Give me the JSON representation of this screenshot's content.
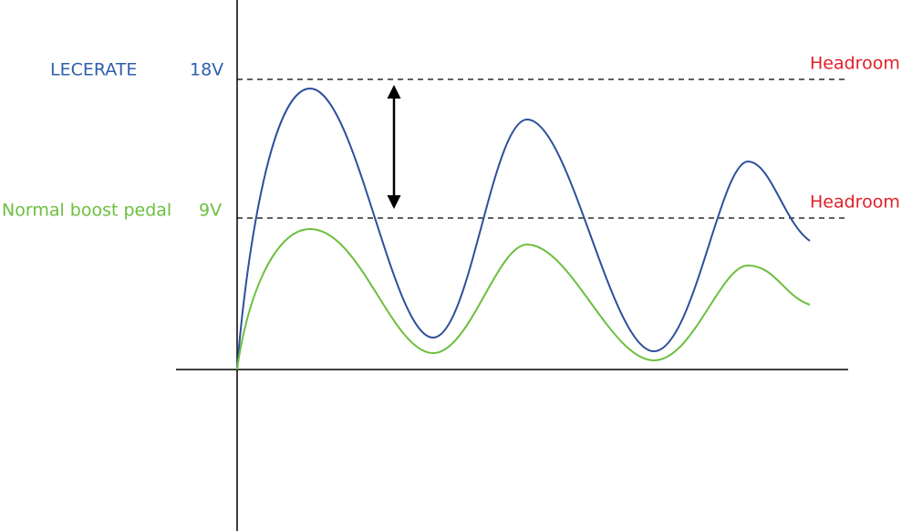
{
  "labels": {
    "high": {
      "name": "LECERATE",
      "voltage": "18V",
      "headroom": "Headroom"
    },
    "low": {
      "name": "Normal boost pedal",
      "voltage": "9V",
      "headroom": "Headroom"
    }
  }
}
